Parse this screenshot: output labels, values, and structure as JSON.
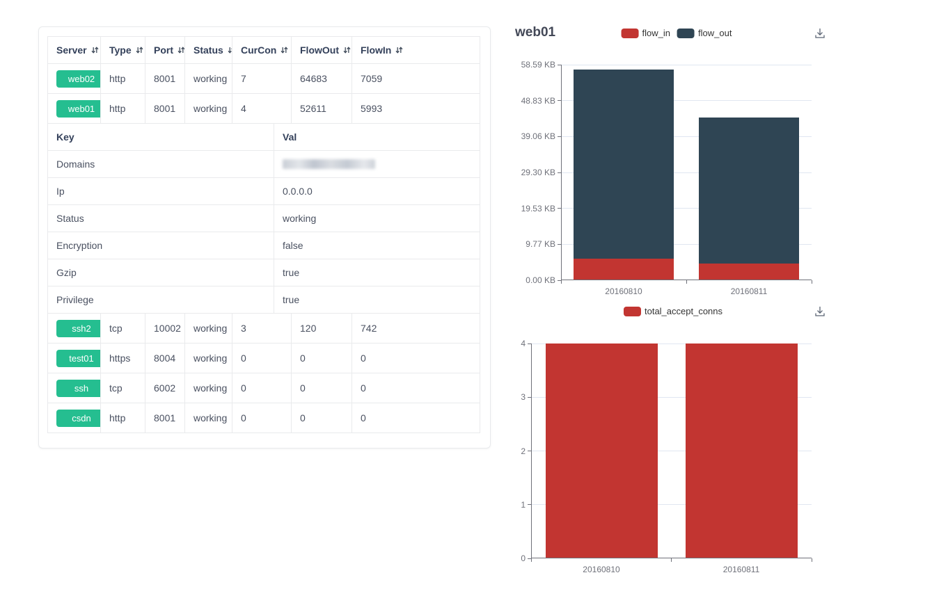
{
  "table": {
    "columns": [
      {
        "label": "Server",
        "sortable": true
      },
      {
        "label": "Type",
        "sortable": true
      },
      {
        "label": "Port",
        "sortable": true
      },
      {
        "label": "Status",
        "sortable": true
      },
      {
        "label": "CurCon",
        "sortable": true
      },
      {
        "label": "FlowOut",
        "sortable": true
      },
      {
        "label": "FlowIn",
        "sortable": true
      }
    ],
    "tag_color": "#25be90",
    "server_rows_top": [
      {
        "server": "web02",
        "type": "http",
        "port": "8001",
        "status": "working",
        "curcon": "7",
        "flowout": "64683",
        "flowin": "7059"
      },
      {
        "server": "web01",
        "type": "http",
        "port": "8001",
        "status": "working",
        "curcon": "4",
        "flowout": "52611",
        "flowin": "5993"
      }
    ],
    "kv_header": {
      "key": "Key",
      "val": "Val"
    },
    "kv_rows": [
      {
        "key": "Domains",
        "val": "",
        "redacted": true
      },
      {
        "key": "Ip",
        "val": "0.0.0.0"
      },
      {
        "key": "Status",
        "val": "working"
      },
      {
        "key": "Encryption",
        "val": "false"
      },
      {
        "key": "Gzip",
        "val": "true"
      },
      {
        "key": "Privilege",
        "val": "true"
      }
    ],
    "server_rows_bottom": [
      {
        "server": "ssh2",
        "type": "tcp",
        "port": "10002",
        "status": "working",
        "curcon": "3",
        "flowout": "120",
        "flowin": "742"
      },
      {
        "server": "test01",
        "type": "https",
        "port": "8004",
        "status": "working",
        "curcon": "0",
        "flowout": "0",
        "flowin": "0"
      },
      {
        "server": "ssh",
        "type": "tcp",
        "port": "6002",
        "status": "working",
        "curcon": "0",
        "flowout": "0",
        "flowin": "0"
      },
      {
        "server": "csdn",
        "type": "http",
        "port": "8001",
        "status": "working",
        "curcon": "0",
        "flowout": "0",
        "flowin": "0"
      }
    ]
  },
  "charts": {
    "title": "web01"
  },
  "icons": {
    "download": "download-tray-arrow",
    "sort": "up-down-arrows"
  },
  "chart_data": [
    {
      "type": "bar",
      "stacked": true,
      "title": "web01",
      "categories": [
        "20160810",
        "20160811"
      ],
      "series": [
        {
          "name": "flow_in",
          "color": "#c23531",
          "values": [
            5.85,
            4.6
          ]
        },
        {
          "name": "flow_out",
          "color": "#2f4554",
          "values": [
            51.4,
            39.6
          ]
        }
      ],
      "unit": "KB",
      "ylim": [
        0,
        58.59
      ],
      "ytick_labels": [
        "0.00 KB",
        "9.77 KB",
        "19.53 KB",
        "29.30 KB",
        "39.06 KB",
        "48.83 KB",
        "58.59 KB"
      ],
      "legend_position": "top-center",
      "grid": true
    },
    {
      "type": "bar",
      "stacked": false,
      "categories": [
        "20160810",
        "20160811"
      ],
      "series": [
        {
          "name": "total_accept_conns",
          "color": "#c23531",
          "values": [
            4,
            4
          ]
        }
      ],
      "ylim": [
        0,
        4
      ],
      "ytick_labels": [
        "0",
        "1",
        "2",
        "3",
        "4"
      ],
      "legend_position": "top-center",
      "grid": true
    }
  ]
}
